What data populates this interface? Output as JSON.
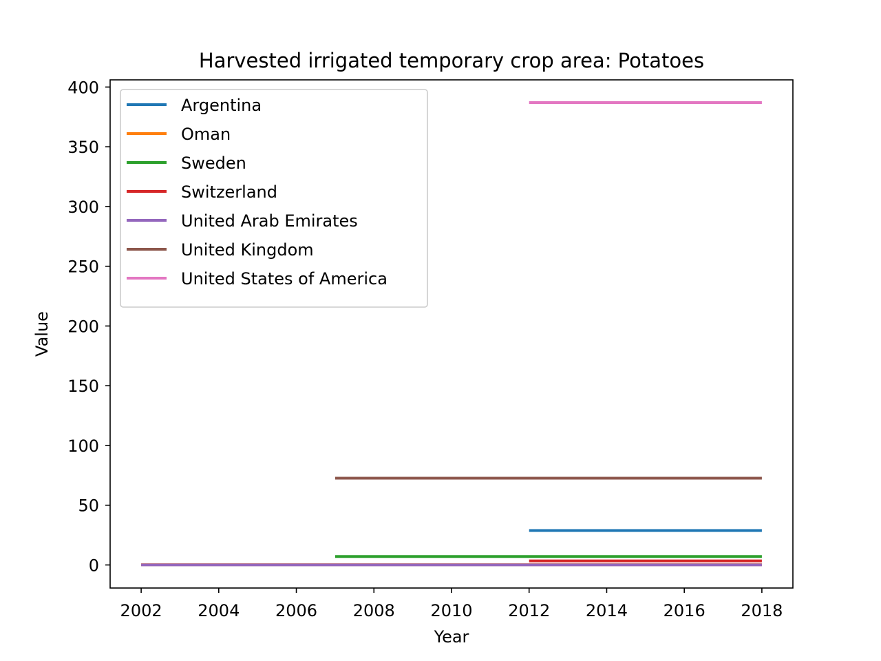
{
  "chart_data": {
    "type": "line",
    "title": "Harvested irrigated temporary crop area: Potatoes",
    "xlabel": "Year",
    "ylabel": "Value",
    "xlim": [
      2001.2,
      2018.8
    ],
    "ylim": [
      -19.3,
      406
    ],
    "xticks": [
      2002,
      2004,
      2006,
      2008,
      2010,
      2012,
      2014,
      2016,
      2018
    ],
    "yticks": [
      0,
      50,
      100,
      150,
      200,
      250,
      300,
      350,
      400
    ],
    "grid": false,
    "legend_position": "upper left",
    "series": [
      {
        "name": "Argentina",
        "color": "#1f77b4",
        "x": [
          2012,
          2018
        ],
        "y": [
          28.8,
          28.8
        ]
      },
      {
        "name": "Oman",
        "color": "#ff7f0e",
        "x": [
          2002,
          2018
        ],
        "y": [
          0.2,
          0.2
        ]
      },
      {
        "name": "Sweden",
        "color": "#2ca02c",
        "x": [
          2007,
          2018
        ],
        "y": [
          7.1,
          7.1
        ]
      },
      {
        "name": "Switzerland",
        "color": "#d62728",
        "x": [
          2012,
          2018
        ],
        "y": [
          3.4,
          3.4
        ]
      },
      {
        "name": "United Arab Emirates",
        "color": "#9467bd",
        "x": [
          2002,
          2018
        ],
        "y": [
          0.1,
          0.1
        ]
      },
      {
        "name": "United Kingdom",
        "color": "#8c564b",
        "x": [
          2007,
          2018
        ],
        "y": [
          72.6,
          72.6
        ]
      },
      {
        "name": "United States of America",
        "color": "#e377c2",
        "x": [
          2012,
          2018
        ],
        "y": [
          387,
          387
        ]
      }
    ]
  }
}
